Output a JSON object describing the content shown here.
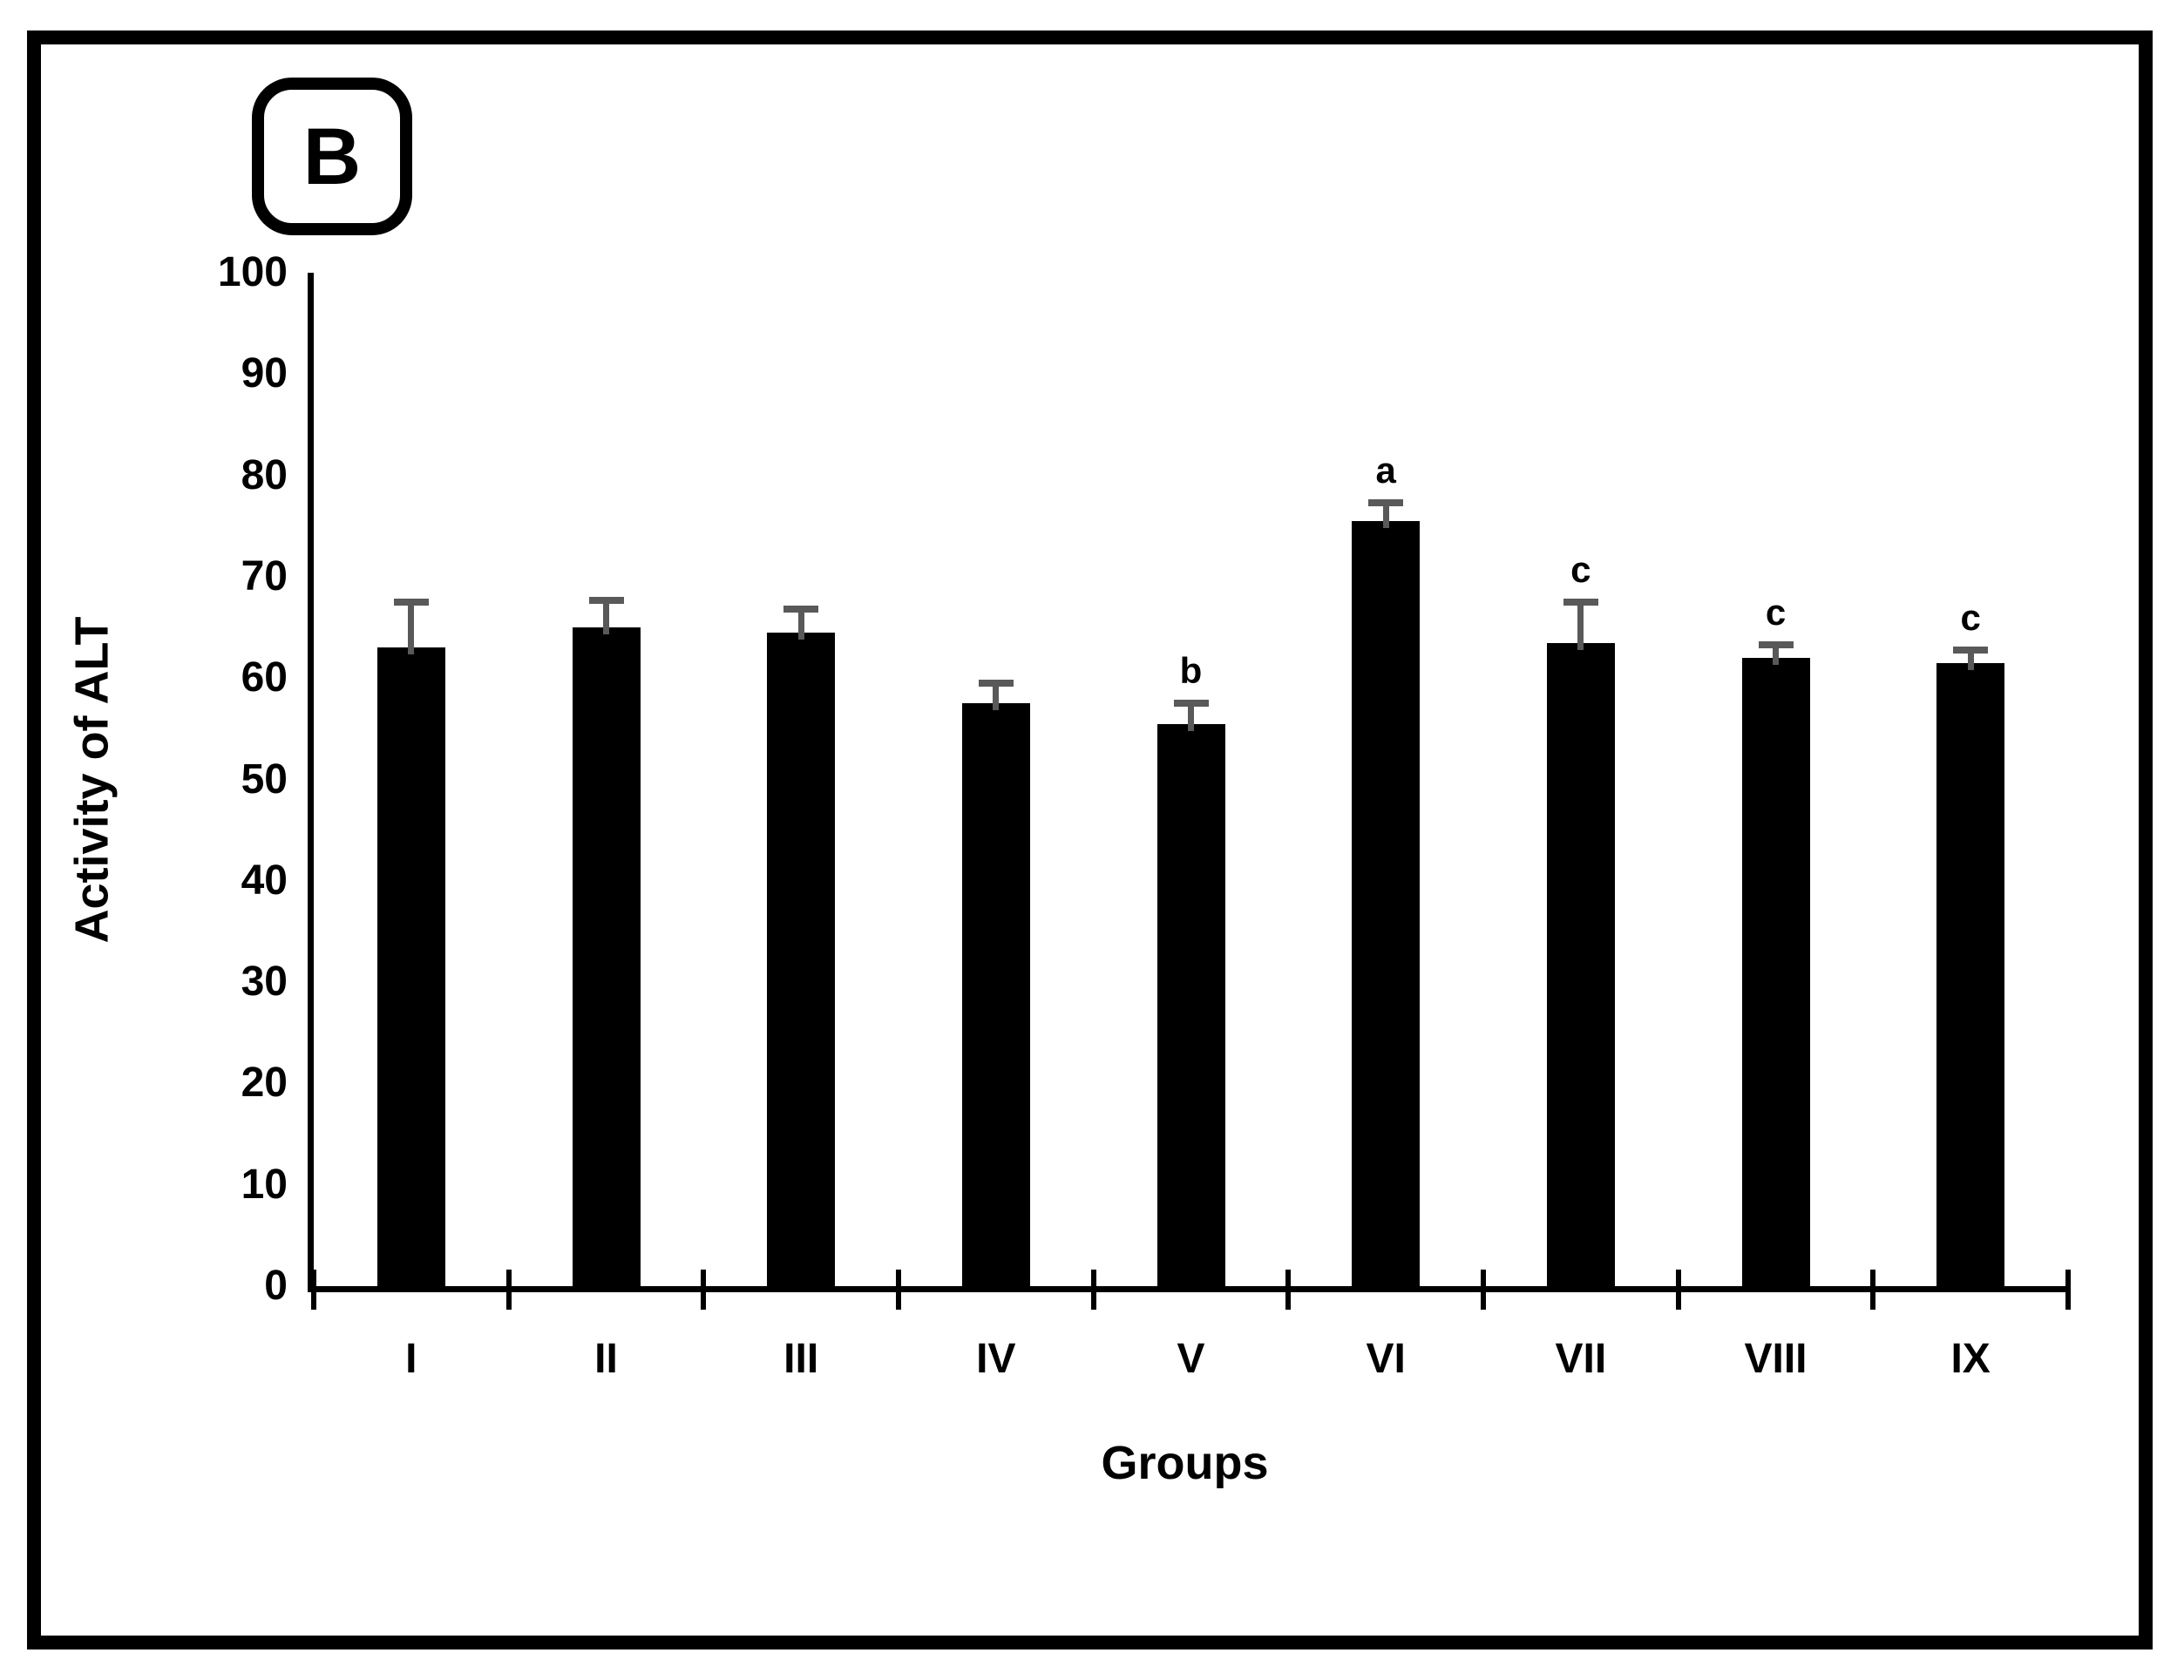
{
  "panel_label": "B",
  "colors": {
    "bar": "#000000",
    "error_bar": "#595959",
    "axis": "#000000",
    "frame": "#000000",
    "background": "#ffffff"
  },
  "chart_data": {
    "type": "bar",
    "panel": "B",
    "categories": [
      "I",
      "II",
      "III",
      "IV",
      "V",
      "VI",
      "VII",
      "VIII",
      "IX"
    ],
    "values": [
      63,
      65,
      64.5,
      57.5,
      55.5,
      75.5,
      63.5,
      62,
      61.5
    ],
    "errors_plus": [
      4.5,
      2.7,
      2.3,
      2,
      2,
      1.8,
      4,
      1.3,
      1.3
    ],
    "annotations": [
      "",
      "",
      "",
      "",
      "b",
      "a",
      "c",
      "c",
      "c"
    ],
    "xlabel": "Groups",
    "ylabel": "Activity of ALT",
    "ylim": [
      0,
      100
    ],
    "yticks": [
      0,
      10,
      20,
      30,
      40,
      50,
      60,
      70,
      80,
      90,
      100
    ],
    "grid": false,
    "legend": null
  }
}
